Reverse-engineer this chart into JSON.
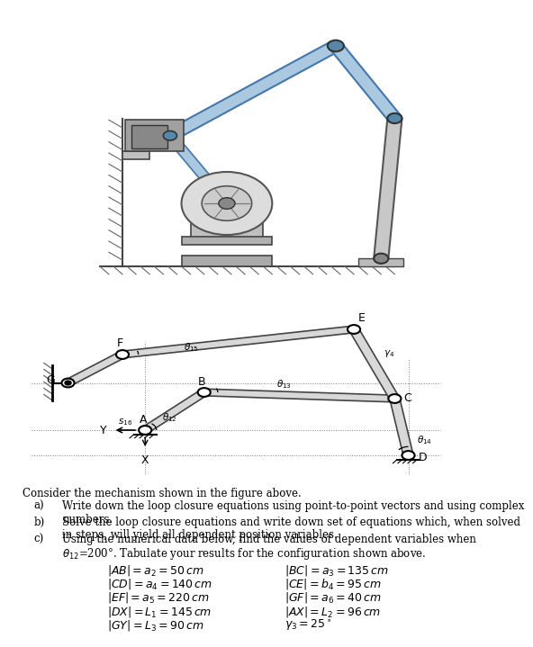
{
  "background_color": "#ffffff",
  "intro_text": "Consider the mechanism shown in the figure above.",
  "items_labels": [
    "a)",
    "b)",
    "c)"
  ],
  "items": [
    "Write down the loop closure equations using point-to-point vectors and using complex\nnumbers.",
    "Solve the loop closure equations and write down set of equations which, when solved\nin steps, will yield all dependent position variables.",
    "Using the numerical data below, find the values of dependent variables when\n$\\theta_{12}$=200°. Tabulate your results for the configuration shown above."
  ],
  "eq_left": [
    "$|AB|=a_2=50\\,cm$",
    "$|CD|=a_4=140\\,cm$",
    "$|EF|=a_5=220\\,cm$",
    "$|DX|=L_1=145\\,cm$",
    "$|GY|=L_3=90\\,cm$"
  ],
  "eq_right": [
    "$|BC|=a_3=135\\,cm$",
    "$|CE|=b_4=95\\,cm$",
    "$|GF|=a_6=40\\,cm$",
    "$|AX|=L_2=96\\,cm$",
    "$\\gamma_3=25^\\circ$"
  ]
}
